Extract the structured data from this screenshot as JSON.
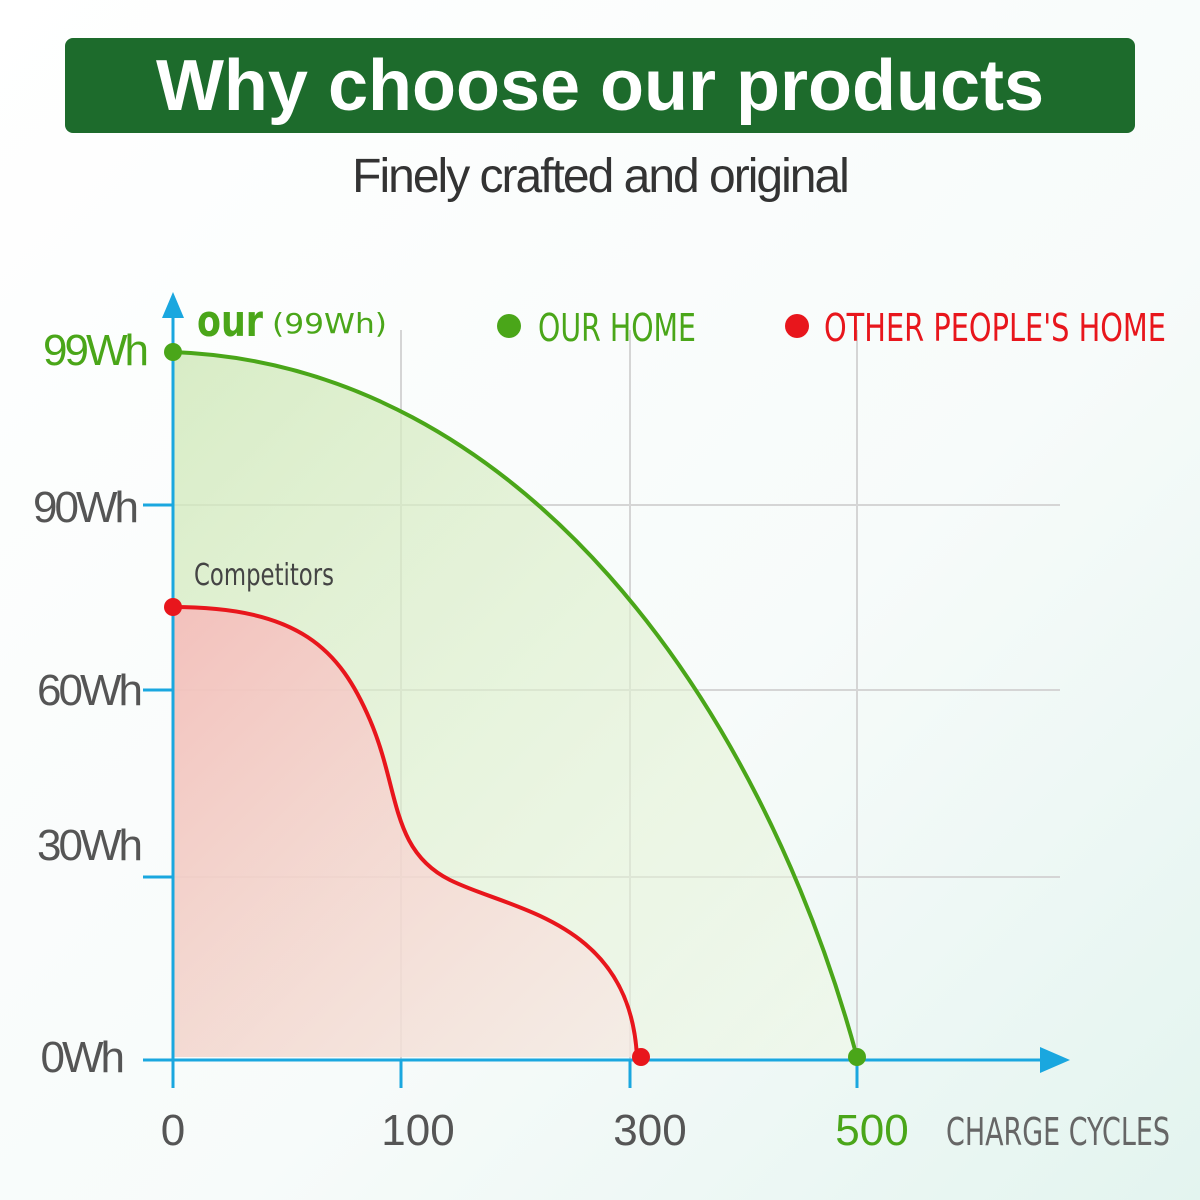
{
  "header": {
    "title": "Why choose our products",
    "subtitle": "Finely crafted and original"
  },
  "graph": {
    "series_label": "our",
    "series_capacity": "(99Wh)",
    "legend": [
      "OUR HOME",
      "OTHER PEOPLE'S HOME"
    ],
    "competitor_label": "Competitors",
    "y_labels": [
      "99Wh",
      "90Wh",
      "60Wh",
      "30Wh",
      "0Wh"
    ],
    "x_labels": [
      "0",
      "100",
      "300",
      "500"
    ],
    "x_title": "CHARGE CYCLES"
  }
}
